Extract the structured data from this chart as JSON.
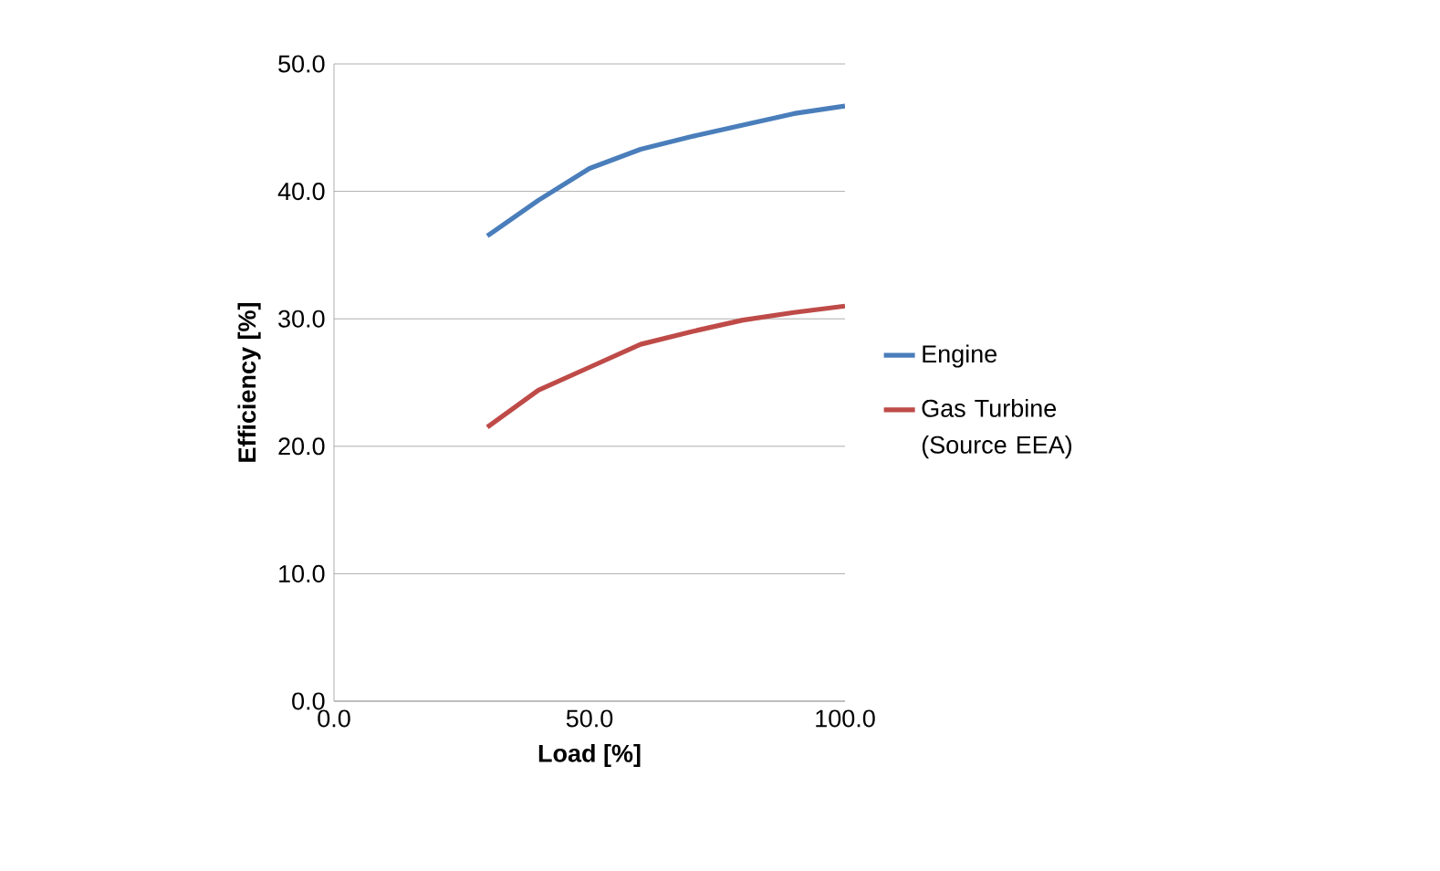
{
  "chart_data": {
    "type": "line",
    "xlabel": "Load [%]",
    "ylabel": "Efficiency [%]",
    "xlim": [
      0,
      100
    ],
    "ylim": [
      0,
      50
    ],
    "xticks": [
      {
        "value": 0,
        "label": "0.0"
      },
      {
        "value": 50,
        "label": "50.0"
      },
      {
        "value": 100,
        "label": "100.0"
      }
    ],
    "yticks": [
      {
        "value": 0,
        "label": "0.0"
      },
      {
        "value": 10,
        "label": "10.0"
      },
      {
        "value": 20,
        "label": "20.0"
      },
      {
        "value": 30,
        "label": "30.0"
      },
      {
        "value": 40,
        "label": "40.0"
      },
      {
        "value": 50,
        "label": "50.0"
      }
    ],
    "grid": "y",
    "legend": "right",
    "marker": "none",
    "line_style": "solid",
    "series": [
      {
        "name": "Engine",
        "color": "#4a7ebb",
        "x": [
          30,
          40,
          50,
          60,
          70,
          80,
          90,
          100
        ],
        "values": [
          36.5,
          39.3,
          41.8,
          43.3,
          44.3,
          45.2,
          46.1,
          46.7
        ]
      },
      {
        "name": "Gas Turbine (Source EEA)",
        "color": "#be4b48",
        "x": [
          30,
          40,
          50,
          60,
          70,
          80,
          90,
          100
        ],
        "values": [
          21.5,
          24.4,
          26.2,
          28.0,
          29.0,
          29.9,
          30.5,
          31.0
        ]
      }
    ]
  }
}
